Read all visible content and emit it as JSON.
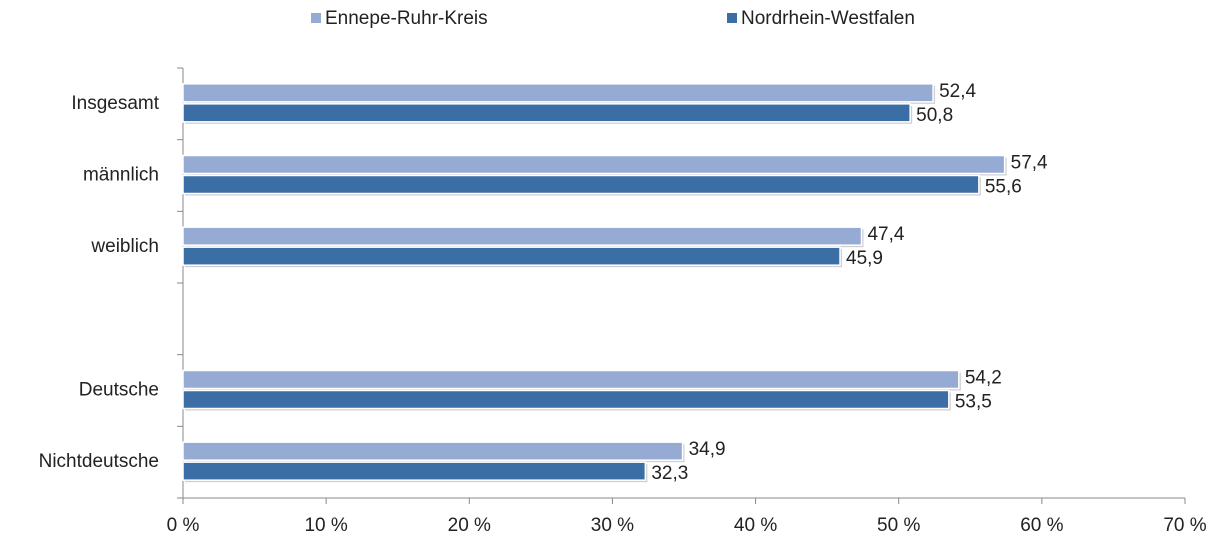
{
  "chart_data": {
    "type": "bar",
    "orientation": "horizontal",
    "categories": [
      "Insgesamt",
      "männlich",
      "weiblich",
      null,
      "Deutsche",
      "Nichtdeutsche"
    ],
    "series": [
      {
        "name": "Ennepe-Ruhr-Kreis",
        "color": "#95abd4",
        "values": [
          52.4,
          57.4,
          47.4,
          null,
          54.2,
          34.9
        ],
        "value_labels": [
          "52,4",
          "57,4",
          "47,4",
          null,
          "54,2",
          "34,9"
        ]
      },
      {
        "name": "Nordrhein-Westfalen",
        "color": "#3b6ea5",
        "values": [
          50.8,
          55.6,
          45.9,
          null,
          53.5,
          32.3
        ],
        "value_labels": [
          "50,8",
          "55,6",
          "45,9",
          null,
          "53,5",
          "32,3"
        ]
      }
    ],
    "xlim": [
      0,
      70
    ],
    "xticks": [
      {
        "value": 0,
        "label": "0 %"
      },
      {
        "value": 10,
        "label": "10 %"
      },
      {
        "value": 20,
        "label": "20 %"
      },
      {
        "value": 30,
        "label": "30 %"
      },
      {
        "value": 40,
        "label": "40 %"
      },
      {
        "value": 50,
        "label": "50 %"
      },
      {
        "value": 60,
        "label": "60 %"
      },
      {
        "value": 70,
        "label": "70 %"
      }
    ],
    "legend": "top",
    "grid": false
  }
}
